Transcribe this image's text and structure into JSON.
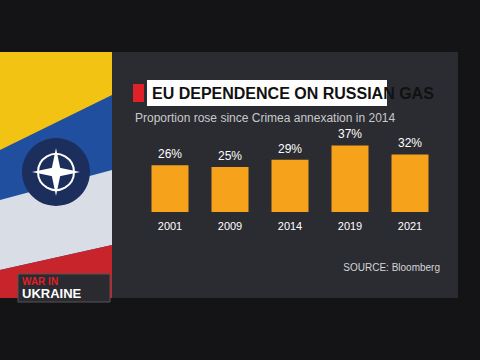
{
  "chart_data": {
    "type": "bar",
    "title": "EU DEPENDENCE ON RUSSIAN GAS",
    "subtitle": "Proportion rose since Crimea annexation in 2014",
    "categories": [
      "2001",
      "2009",
      "2014",
      "2019",
      "2021"
    ],
    "values": [
      26,
      25,
      29,
      37,
      32
    ],
    "value_labels": [
      "26%",
      "25%",
      "29%",
      "37%",
      "32%"
    ],
    "color": "#f7a21b",
    "ylim": [
      0,
      40
    ],
    "yticks": [
      0,
      40
    ],
    "grid": false,
    "data_labels": true,
    "tick_labels": "x",
    "source": "SOURCE: Bloomberg",
    "annotations": [
      "WAR IN",
      "UKRAINE"
    ]
  }
}
